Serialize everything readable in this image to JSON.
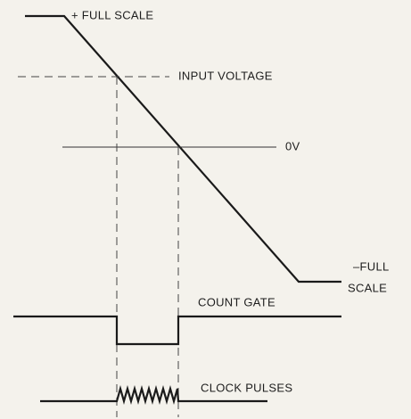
{
  "labels": {
    "positive_full_scale": "+ FULL SCALE",
    "input_voltage": "INPUT VOLTAGE",
    "zero_volts": "0V",
    "negative_full_scale": [
      "–FULL",
      "SCALE"
    ],
    "count_gate": "COUNT GATE",
    "clock_pulses": "CLOCK PULSES"
  }
}
